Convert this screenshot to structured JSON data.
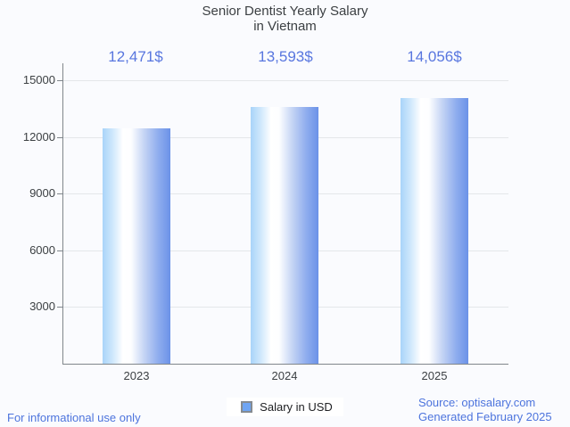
{
  "title": {
    "line1": "Senior Dentist Yearly Salary",
    "line2": "in Vietnam"
  },
  "chart_data": {
    "type": "bar",
    "categories": [
      "2023",
      "2024",
      "2025"
    ],
    "values": [
      12471,
      13593,
      14056
    ],
    "value_labels": [
      "12,471$",
      "13,593$",
      "14,056$"
    ],
    "series": [
      {
        "name": "Salary in USD",
        "values": [
          12471,
          13593,
          14056
        ]
      }
    ],
    "title": "Senior Dentist Yearly Salary in Vietnam",
    "xlabel": "",
    "ylabel": "",
    "ylim": [
      0,
      15000
    ],
    "yticks": [
      3000,
      6000,
      9000,
      12000,
      15000
    ],
    "ytick_labels": [
      "15000",
      "12000",
      "9000",
      "6000",
      "3000"
    ],
    "grid": true,
    "legend_position": "bottom"
  },
  "legend": {
    "label": "Salary in USD"
  },
  "footer": {
    "left": "For informational use only",
    "source": "Source: optisalary.com",
    "generated": "Generated February 2025"
  },
  "colors": {
    "background": "#fafbfe",
    "text_blue": "#5876df",
    "footer_blue": "#4d74dd",
    "label_dark": "#3c4043",
    "axis_gray": "#80868b",
    "grid_gray": "#e4e7ea",
    "bar_gradient_light": "#a9d4f9",
    "bar_gradient_dark": "#6b92e8",
    "legend_marker_fill": "#6fa5f3",
    "legend_marker_border": "#858b91"
  }
}
